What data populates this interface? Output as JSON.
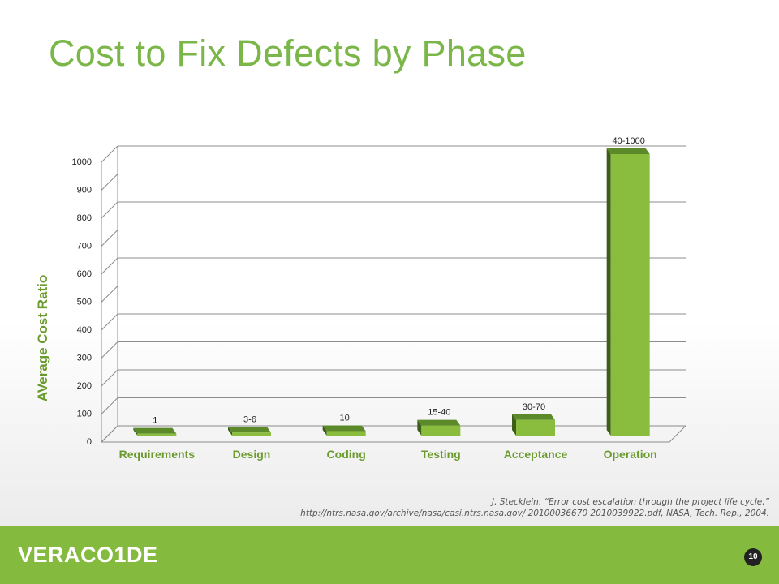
{
  "slide": {
    "title": "Cost to Fix Defects by Phase",
    "citation_line1": "J. Stecklein, “Error cost escalation through the project life cycle,”",
    "citation_line2": "http://ntrs.nasa.gov/archive/nasa/casi.ntrs.nasa.gov/ 20100036670 2010039922.pdf, NASA, Tech. Rep., 2004.",
    "page_number": "10"
  },
  "footer": {
    "logo_text": "VERACO1DE",
    "color": "#84ba3d"
  },
  "colors": {
    "title": "#7ab648",
    "bar_front": "#8abd3e",
    "bar_side": "#3d5e1a",
    "bar_top": "#5c8a2a",
    "axis_label": "#6b9a2e"
  },
  "chart_data": {
    "type": "bar",
    "categories": [
      "Requirements",
      "Design",
      "Coding",
      "Testing",
      "Acceptance",
      "Operation"
    ],
    "values": [
      1,
      5,
      10,
      30,
      50,
      1000
    ],
    "data_labels": [
      "1",
      "3-6",
      "10",
      "15-40",
      "30-70",
      "40-1000"
    ],
    "ylabel": "AVerage Cost Ratio",
    "ylim": [
      0,
      1000
    ],
    "yticks": [
      0,
      100,
      200,
      300,
      400,
      500,
      600,
      700,
      800,
      900,
      1000
    ],
    "grid": true,
    "style": "3d-perspective"
  }
}
